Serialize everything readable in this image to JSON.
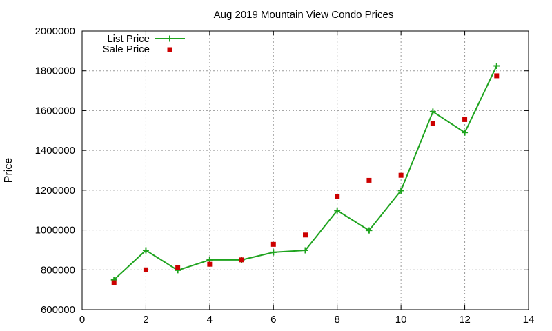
{
  "chart_data": {
    "type": "line",
    "title": "Aug 2019 Mountain View Condo Prices",
    "xlabel": "",
    "ylabel": "Price",
    "xlim": [
      0,
      14
    ],
    "ylim": [
      600000,
      2000000
    ],
    "x_ticks": [
      0,
      2,
      4,
      6,
      8,
      10,
      12,
      14
    ],
    "y_ticks": [
      600000,
      800000,
      1000000,
      1200000,
      1400000,
      1600000,
      1800000,
      2000000
    ],
    "grid": true,
    "legend_position": "top-left",
    "series": [
      {
        "name": "List Price",
        "style": "line-with-plus-markers",
        "color": "#1ea31e",
        "x": [
          1,
          2,
          3,
          4,
          5,
          6,
          7,
          8,
          9,
          10,
          11,
          12,
          13
        ],
        "y": [
          750000,
          898000,
          798000,
          850000,
          850000,
          888000,
          898000,
          1098000,
          998000,
          1198000,
          1595000,
          1490000,
          1825000
        ]
      },
      {
        "name": "Sale Price",
        "style": "square-markers",
        "color": "#cc0000",
        "x": [
          1,
          2,
          3,
          4,
          5,
          6,
          7,
          8,
          9,
          10,
          11,
          12,
          13
        ],
        "y": [
          735000,
          800000,
          810000,
          828000,
          850000,
          928000,
          975000,
          1168000,
          1250000,
          1275000,
          1535000,
          1555000,
          1775000
        ]
      }
    ]
  }
}
